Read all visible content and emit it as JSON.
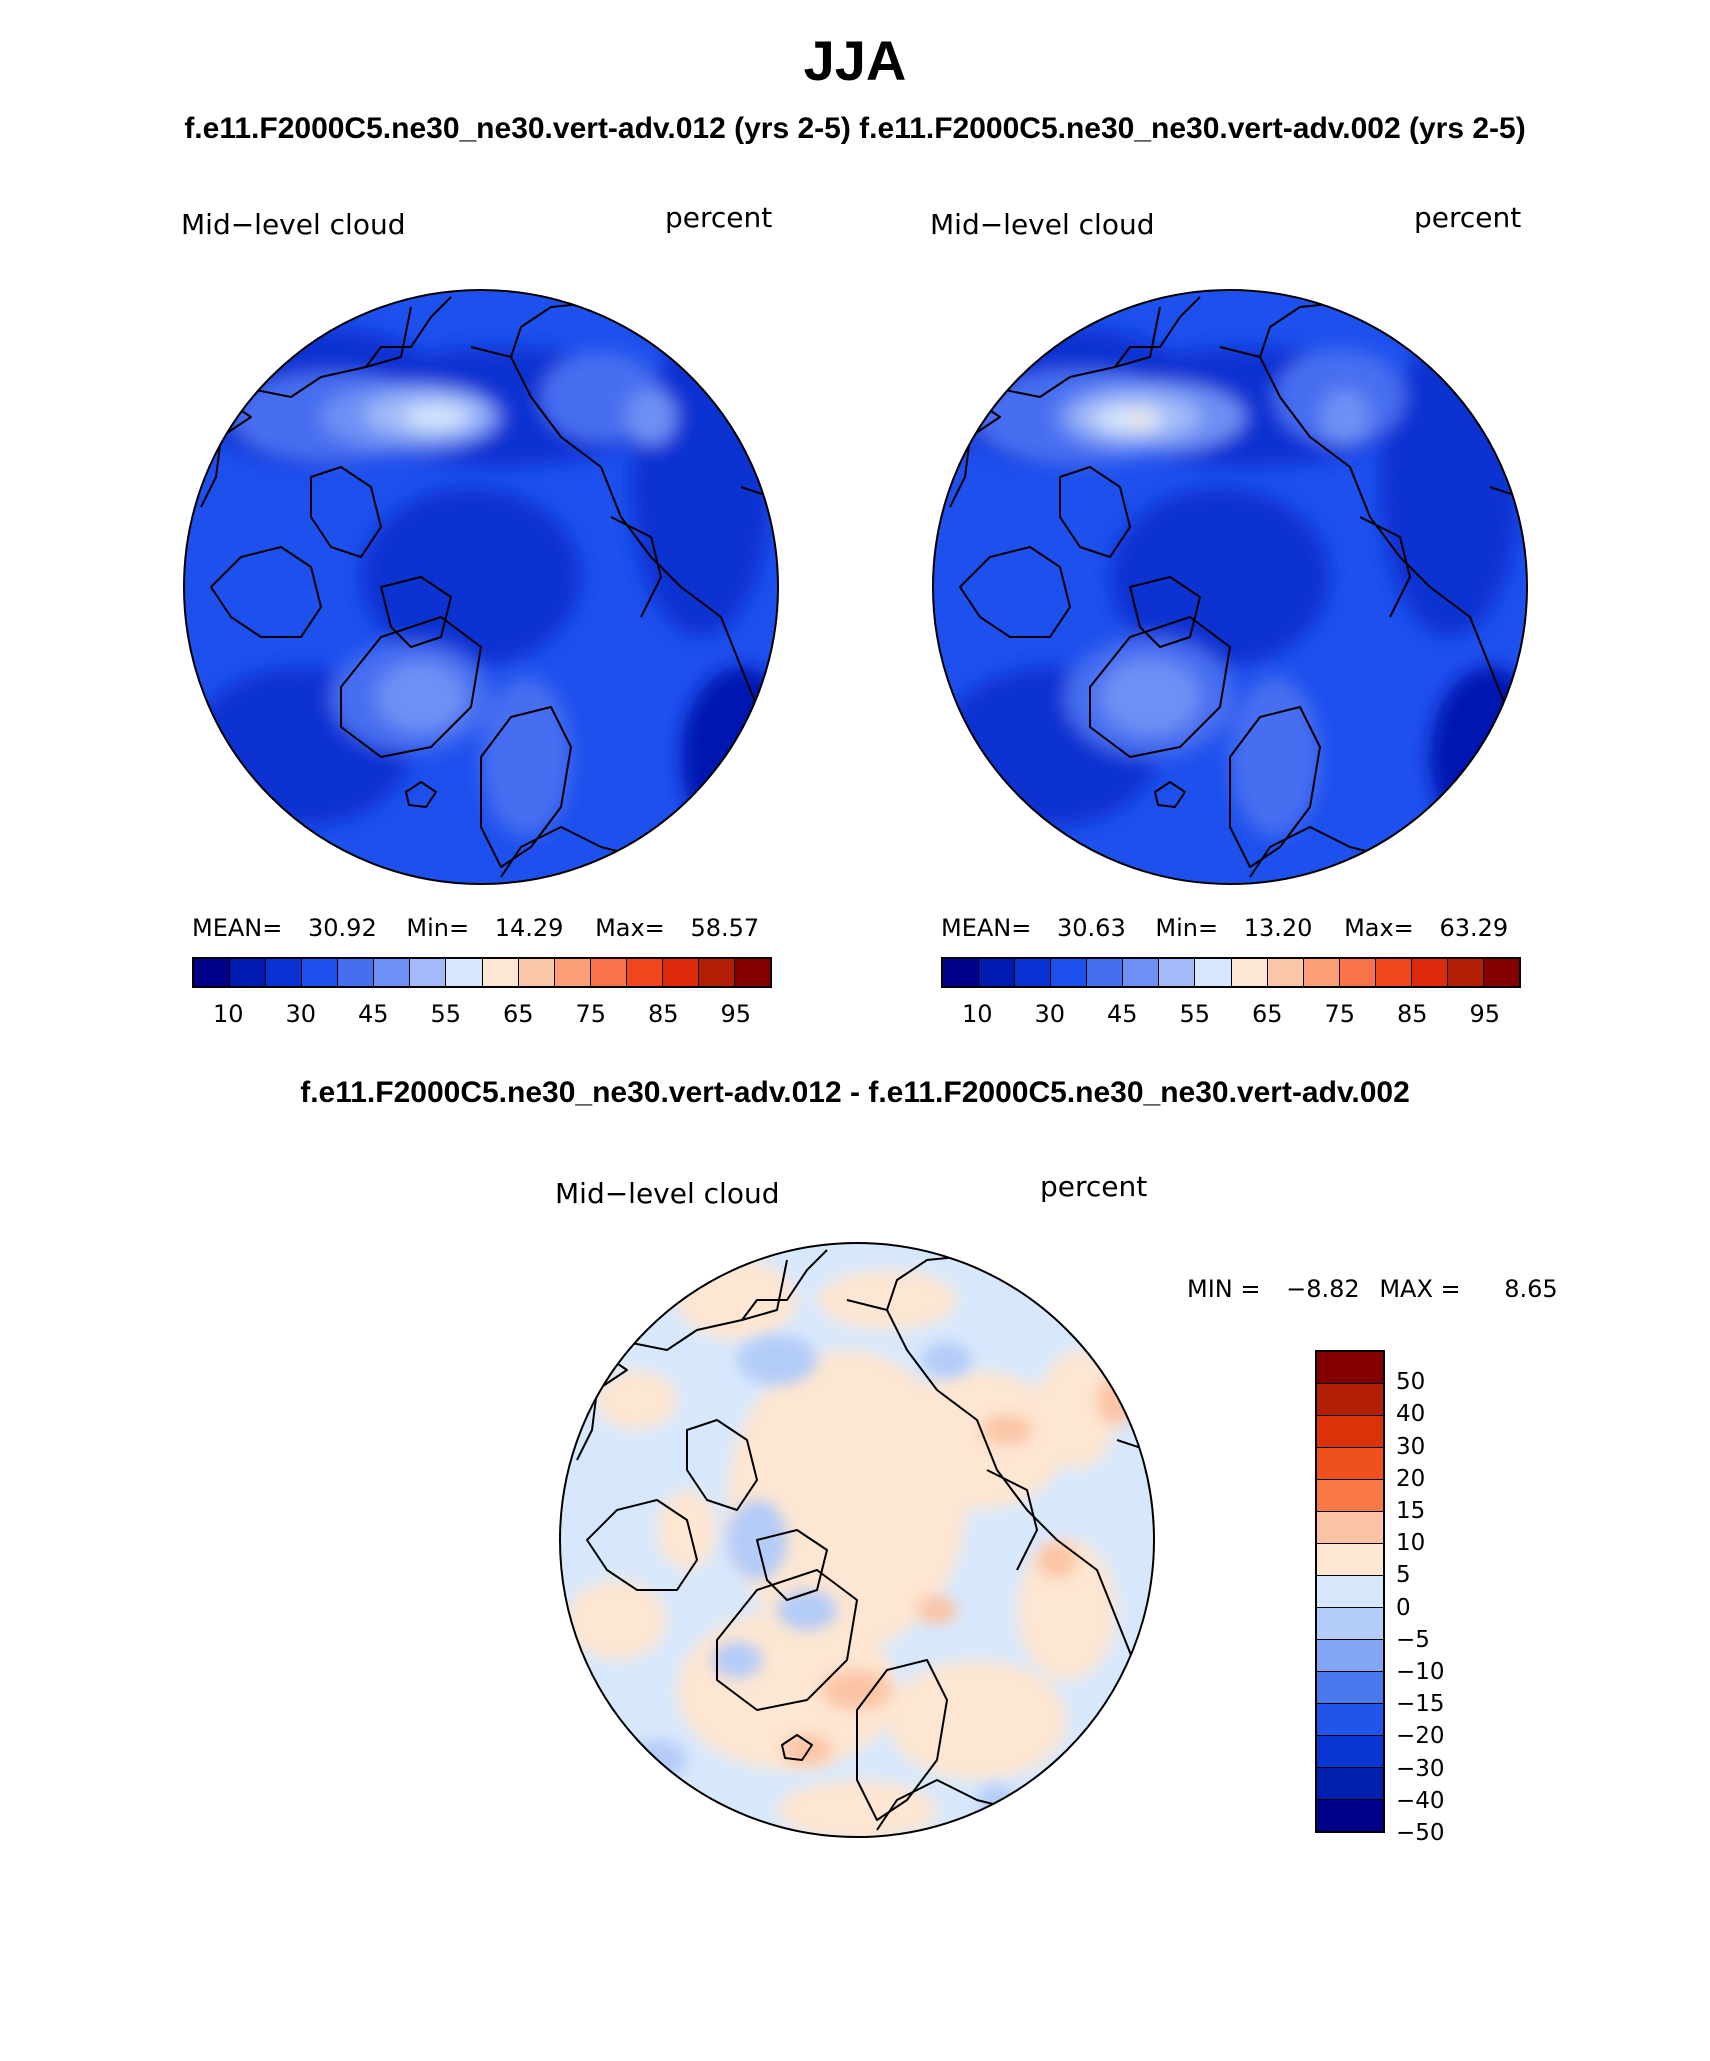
{
  "title": "JJA",
  "cases_label": "f.e11.F2000C5.ne30_ne30.vert-adv.012 (yrs 2-5) f.e11.F2000C5.ne30_ne30.vert-adv.002 (yrs 2-5)",
  "diff_label": "f.e11.F2000C5.ne30_ne30.vert-adv.012 - f.e11.F2000C5.ne30_ne30.vert-adv.002",
  "panels": [
    {
      "variable": "Mid−level cloud",
      "units": "percent",
      "mean_label": "MEAN=",
      "mean": "30.92",
      "min_label": "Min=",
      "min": "14.29",
      "max_label": "Max=",
      "max": "58.57"
    },
    {
      "variable": "Mid−level cloud",
      "units": "percent",
      "mean_label": "MEAN=",
      "mean": "30.63",
      "min_label": "Min=",
      "min": "13.20",
      "max_label": "Max=",
      "max": "63.29"
    }
  ],
  "diff_panel": {
    "variable": "Mid−level cloud",
    "units": "percent",
    "min_label": "MIN =",
    "min": "−8.82",
    "max_label": "MAX =",
    "max": "8.65"
  },
  "abs_colorbar": {
    "colors": [
      "#00008b",
      "#0019b0",
      "#0a32d2",
      "#1e50ee",
      "#466ef0",
      "#6e90f4",
      "#a2baf8",
      "#d6e6fc",
      "#fde6d2",
      "#fcc6aa",
      "#fb9e78",
      "#f8724a",
      "#f0461e",
      "#dc2a0a",
      "#b41e06",
      "#840000"
    ],
    "tick_labels": [
      "10",
      "30",
      "45",
      "55",
      "65",
      "75",
      "85",
      "95"
    ]
  },
  "diff_colorbar": {
    "colors": [
      "#840000",
      "#b41e06",
      "#dc320a",
      "#f0501e",
      "#f87846",
      "#fcc4a6",
      "#fde6d2",
      "#d8e8fc",
      "#b4ccf8",
      "#82a6f4",
      "#4c78ee",
      "#2254ec",
      "#0a36d2",
      "#0020b0",
      "#00008b"
    ],
    "tick_labels": [
      "50",
      "40",
      "30",
      "20",
      "15",
      "10",
      "5",
      "0",
      "−5",
      "−10",
      "−15",
      "−20",
      "−30",
      "−40",
      "−50"
    ]
  }
}
